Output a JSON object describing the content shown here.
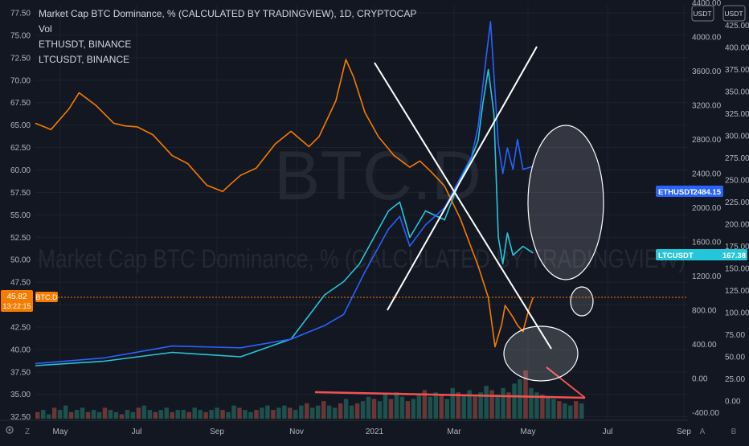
{
  "legend": {
    "main_title": "Market Cap BTC Dominance, % (CALCULATED BY TRADINGVIEW), 1D, CRYPTOCAP",
    "vol": "Vol",
    "eth": "ETHUSDT, BINANCE",
    "ltc": "LTCUSDT, BINANCE"
  },
  "watermark": {
    "symbol": "BTC.D",
    "description": "Market Cap BTC Dominance, % (CALCULATED BY TRADINGVIEW)"
  },
  "badges": {
    "left_value": "45.82",
    "left_time": "13:22:15",
    "left_symbol": "BTC.D",
    "eth_label": "ETHUSDT",
    "eth_value": "2484.15",
    "ltc_label": "LTCUSDT",
    "ltc_value": "167.38",
    "currency_1": "USDT",
    "currency_2": "USDT"
  },
  "axes": {
    "corner_left": "Z",
    "corner_a": "A",
    "corner_b": "B",
    "settings_icon": "gear-icon"
  },
  "colors": {
    "btc_dominance": "#f57c00",
    "eth": "#2962ff",
    "ltc": "#26c6da",
    "annotation": "#ffffff",
    "volume_trend": "#ef5350",
    "background": "#131722"
  },
  "chart_data": {
    "type": "line",
    "x_ticks": [
      "May",
      "Jul",
      "Sep",
      "Nov",
      "2021",
      "Mar",
      "May",
      "Jul",
      "Sep"
    ],
    "y_left_ticks": [
      "77.50",
      "75.00",
      "72.50",
      "70.00",
      "67.50",
      "65.00",
      "62.50",
      "60.00",
      "57.50",
      "55.00",
      "52.50",
      "50.00",
      "47.50",
      "45.00",
      "42.50",
      "40.00",
      "37.50",
      "35.00",
      "32.50"
    ],
    "y_left_range": [
      32.5,
      77.5
    ],
    "y_eth_ticks": [
      "4400.00",
      "4000.00",
      "3600.00",
      "3200.00",
      "2800.00",
      "2400.00",
      "2000.00",
      "1600.00",
      "1200.00",
      "800.00",
      "400.00",
      "0.00",
      "-400.00"
    ],
    "y_ltc_ticks": [
      "425.00",
      "400.00",
      "375.00",
      "350.00",
      "325.00",
      "300.00",
      "275.00",
      "250.00",
      "225.00",
      "200.00",
      "175.00",
      "150.00",
      "125.00",
      "100.00",
      "75.00",
      "50.00",
      "25.00",
      "0.00"
    ],
    "series": [
      {
        "name": "Market Cap BTC Dominance",
        "axis": "left",
        "points": [
          [
            "2020-04-01",
            65.2
          ],
          [
            "2020-04-15",
            64.5
          ],
          [
            "2020-05-01",
            66.8
          ],
          [
            "2020-05-10",
            68.6
          ],
          [
            "2020-05-25",
            67.2
          ],
          [
            "2020-06-10",
            65.2
          ],
          [
            "2020-06-20",
            64.9
          ],
          [
            "2020-07-01",
            64.8
          ],
          [
            "2020-07-15",
            63.9
          ],
          [
            "2020-08-01",
            61.6
          ],
          [
            "2020-08-15",
            60.7
          ],
          [
            "2020-09-01",
            58.3
          ],
          [
            "2020-09-15",
            57.6
          ],
          [
            "2020-09-22",
            58.4
          ],
          [
            "2020-10-01",
            59.4
          ],
          [
            "2020-10-15",
            60.2
          ],
          [
            "2020-11-01",
            62.9
          ],
          [
            "2020-11-15",
            64.3
          ],
          [
            "2020-12-01",
            62.6
          ],
          [
            "2020-12-10",
            63.7
          ],
          [
            "2020-12-25",
            67.7
          ],
          [
            "2021-01-03",
            72.3
          ],
          [
            "2021-01-10",
            70.3
          ],
          [
            "2021-01-20",
            66.4
          ],
          [
            "2021-02-01",
            63.7
          ],
          [
            "2021-02-15",
            61.6
          ],
          [
            "2021-03-01",
            60.3
          ],
          [
            "2021-03-10",
            61.0
          ],
          [
            "2021-03-20",
            59.8
          ],
          [
            "2021-04-01",
            58.2
          ],
          [
            "2021-04-15",
            54.6
          ],
          [
            "2021-05-01",
            49.3
          ],
          [
            "2021-05-10",
            45.8
          ],
          [
            "2021-05-16",
            40.3
          ],
          [
            "2021-05-22",
            42.8
          ],
          [
            "2021-05-25",
            44.9
          ],
          [
            "2021-06-01",
            43.6
          ],
          [
            "2021-06-05",
            42.7
          ],
          [
            "2021-06-10",
            42.0
          ],
          [
            "2021-06-15",
            44.4
          ],
          [
            "2021-06-19",
            45.8
          ]
        ]
      },
      {
        "name": "ETHUSDT",
        "axis": "eth",
        "points": [
          [
            "2020-04-01",
            175
          ],
          [
            "2020-06-01",
            240
          ],
          [
            "2020-08-01",
            380
          ],
          [
            "2020-10-01",
            360
          ],
          [
            "2020-11-15",
            460
          ],
          [
            "2020-12-15",
            620
          ],
          [
            "2021-01-01",
            750
          ],
          [
            "2021-01-20",
            1250
          ],
          [
            "2021-02-10",
            1750
          ],
          [
            "2021-02-20",
            1900
          ],
          [
            "2021-03-01",
            1550
          ],
          [
            "2021-03-15",
            1800
          ],
          [
            "2021-04-01",
            2000
          ],
          [
            "2021-04-15",
            2350
          ],
          [
            "2021-04-25",
            2600
          ],
          [
            "2021-05-01",
            2950
          ],
          [
            "2021-05-08",
            3750
          ],
          [
            "2021-05-12",
            4180
          ],
          [
            "2021-05-19",
            2750
          ],
          [
            "2021-05-23",
            2400
          ],
          [
            "2021-05-27",
            2700
          ],
          [
            "2021-06-01",
            2450
          ],
          [
            "2021-06-05",
            2800
          ],
          [
            "2021-06-10",
            2450
          ],
          [
            "2021-06-19",
            2484.15
          ]
        ]
      },
      {
        "name": "LTCUSDT",
        "axis": "ltc",
        "points": [
          [
            "2020-04-01",
            40
          ],
          [
            "2020-06-01",
            45
          ],
          [
            "2020-08-01",
            55
          ],
          [
            "2020-10-01",
            50
          ],
          [
            "2020-11-15",
            70
          ],
          [
            "2020-12-15",
            120
          ],
          [
            "2021-01-01",
            135
          ],
          [
            "2021-01-15",
            155
          ],
          [
            "2021-02-10",
            215
          ],
          [
            "2021-02-20",
            225
          ],
          [
            "2021-03-01",
            185
          ],
          [
            "2021-03-15",
            215
          ],
          [
            "2021-04-01",
            205
          ],
          [
            "2021-04-15",
            250
          ],
          [
            "2021-04-25",
            275
          ],
          [
            "2021-05-01",
            295
          ],
          [
            "2021-05-05",
            335
          ],
          [
            "2021-05-10",
            375
          ],
          [
            "2021-05-15",
            325
          ],
          [
            "2021-05-19",
            185
          ],
          [
            "2021-05-23",
            155
          ],
          [
            "2021-05-27",
            190
          ],
          [
            "2021-06-01",
            165
          ],
          [
            "2021-06-10",
            175
          ],
          [
            "2021-06-19",
            167.38
          ]
        ]
      }
    ]
  },
  "volume": {
    "bars": [
      3,
      4,
      2,
      5,
      4,
      6,
      3,
      4,
      5,
      3,
      4,
      3,
      5,
      4,
      3,
      2,
      4,
      3,
      5,
      6,
      4,
      3,
      4,
      5,
      3,
      4,
      4,
      3,
      5,
      4,
      3,
      4,
      5,
      4,
      3,
      6,
      5,
      4,
      3,
      4,
      5,
      6,
      4,
      5,
      6,
      5,
      4,
      6,
      7,
      5,
      6,
      8,
      6,
      5,
      7,
      9,
      6,
      7,
      8,
      10,
      9,
      8,
      11,
      9,
      12,
      10,
      8,
      9,
      11,
      13,
      10,
      12,
      11,
      9,
      14,
      12,
      11,
      13,
      10,
      12,
      15,
      13,
      11,
      14,
      12,
      16,
      18,
      22,
      14,
      12,
      11,
      10,
      9,
      8,
      7,
      6,
      8,
      7
    ]
  }
}
